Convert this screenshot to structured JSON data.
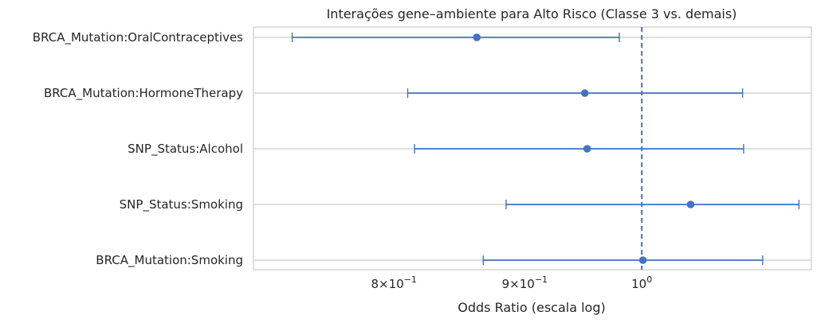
{
  "chart_data": {
    "type": "scatter",
    "subtype": "forest-plot",
    "title": "Interações gene–ambiente para Alto Risco (Classe 3 vs. demais)",
    "xlabel": "Odds Ratio (escala log)",
    "ylabel": "",
    "x_scale": "log",
    "xlim": [
      0.705,
      1.165
    ],
    "x_ticks": [
      {
        "value": 0.8,
        "mantissa": "8",
        "exp": "−1"
      },
      {
        "value": 0.9,
        "mantissa": "9",
        "exp": "−1"
      },
      {
        "value": 1.0,
        "mantissa": "1",
        "exp": "0"
      }
    ],
    "reference_line": {
      "x": 1.0,
      "style": "dashed"
    },
    "grid": true,
    "series_color": "#4472c4",
    "rows": [
      {
        "label": "BRCA_Mutation:OralContraceptives",
        "or": 0.862,
        "ci_low": 0.73,
        "ci_high": 0.98
      },
      {
        "label": "BRCA_Mutation:HormoneTherapy",
        "or": 0.95,
        "ci_low": 0.81,
        "ci_high": 1.095
      },
      {
        "label": "SNP_Status:Alcohol",
        "or": 0.952,
        "ci_low": 0.815,
        "ci_high": 1.096
      },
      {
        "label": "SNP_Status:Smoking",
        "or": 1.045,
        "ci_low": 0.885,
        "ci_high": 1.152
      },
      {
        "label": "BRCA_Mutation:Smoking",
        "or": 1.001,
        "ci_low": 0.867,
        "ci_high": 1.115
      }
    ]
  }
}
